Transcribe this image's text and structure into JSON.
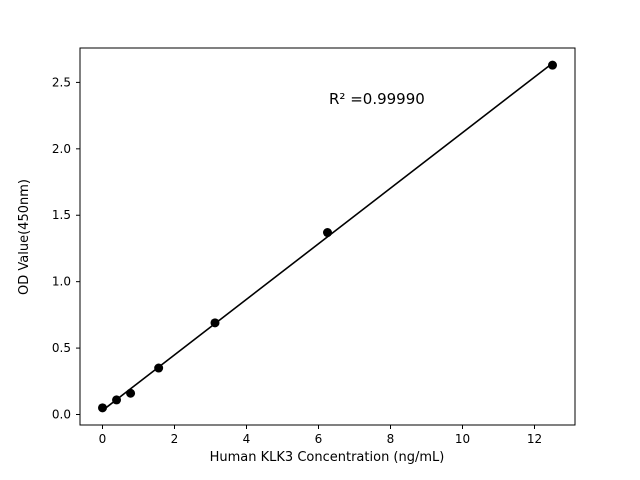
{
  "figure": {
    "background": "#ffffff"
  },
  "chart_data": {
    "type": "scatter",
    "title": "",
    "xlabel": "Human KLK3 Concentration (ng/mL)",
    "ylabel": "OD Value(450nm)",
    "annotation": "R² =0.99990",
    "x": [
      0,
      0.39,
      0.78,
      1.56,
      3.125,
      6.25,
      12.5
    ],
    "y": [
      0.05,
      0.11,
      0.16,
      0.35,
      0.69,
      1.37,
      2.63
    ],
    "has_regression_line": true,
    "grid": false,
    "legend": "none",
    "xlim": [
      -0.625,
      13.125
    ],
    "ylim": [
      -0.079,
      2.759
    ],
    "xticks": {
      "values": [
        0,
        2,
        4,
        6,
        8,
        10,
        12
      ],
      "labels": [
        "0",
        "2",
        "4",
        "6",
        "8",
        "10",
        "12"
      ]
    },
    "yticks": {
      "values": [
        0,
        0.5,
        1,
        1.5,
        2,
        2.5
      ],
      "labels": [
        "0.0",
        "0.5",
        "1.0",
        "1.5",
        "2.0",
        "2.5"
      ]
    },
    "colors": {
      "point": "#000000",
      "line": "#000000",
      "axis": "#000000",
      "background": "#ffffff"
    }
  }
}
